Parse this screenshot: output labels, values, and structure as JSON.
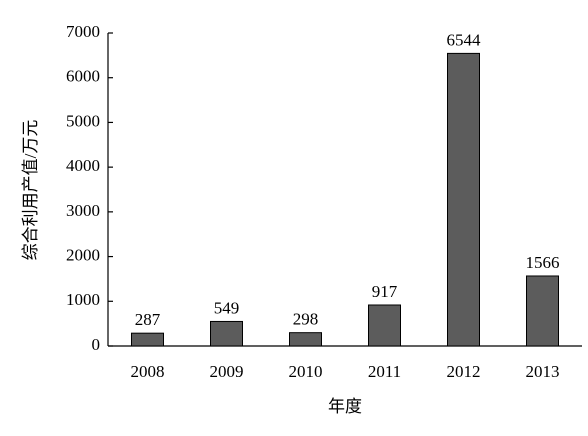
{
  "chart_data": {
    "type": "bar",
    "x_label": "年度",
    "y_label": "综合利用产值/万元",
    "categories": [
      "2008",
      "2009",
      "2010",
      "2011",
      "2012",
      "2013"
    ],
    "values": [
      287,
      549,
      298,
      917,
      6544,
      1566
    ],
    "color": "#5c5c5c",
    "ylim": [
      0,
      7000
    ],
    "yticks": [
      0,
      1000,
      2000,
      3000,
      4000,
      5000,
      6000,
      7000
    ],
    "grid": false
  }
}
